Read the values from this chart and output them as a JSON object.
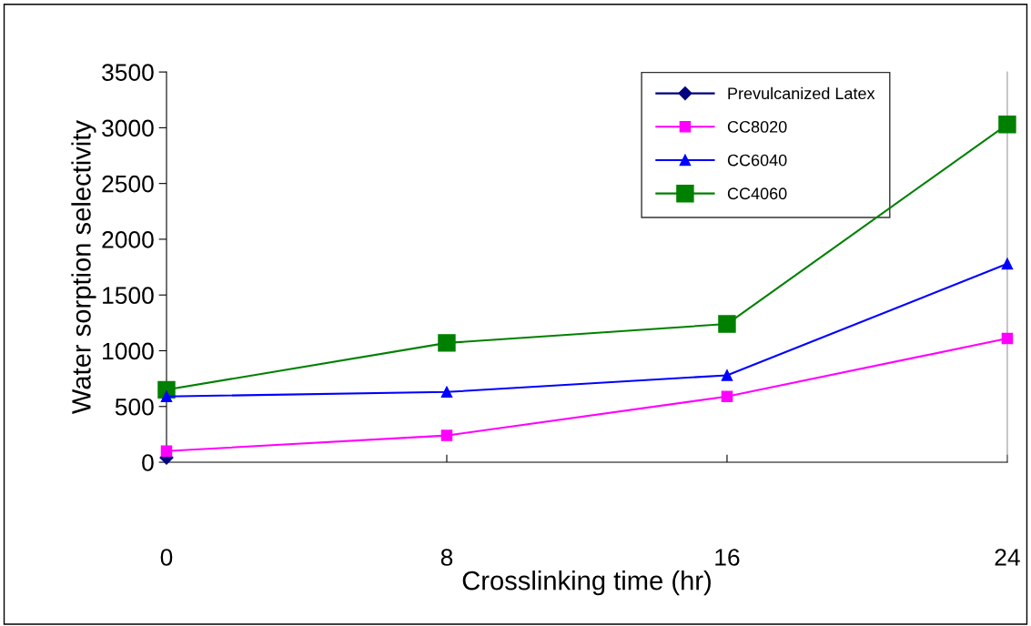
{
  "chart_data": {
    "type": "line",
    "xlabel": "Crosslinking time (hr)",
    "ylabel": "Water sorption selectivity",
    "x": [
      0,
      8,
      16,
      24
    ],
    "xlim": [
      0,
      24
    ],
    "xticks": [
      0,
      8,
      16,
      24
    ],
    "ylim": [
      0,
      3500
    ],
    "yticks": [
      0,
      500,
      1000,
      1500,
      2000,
      2500,
      3000,
      3500
    ],
    "grid": false,
    "legend": "top right",
    "series": [
      {
        "name": "Prevulcanized Latex",
        "color": "#000080",
        "marker": "diamond",
        "values": [
          40,
          null,
          null,
          null
        ]
      },
      {
        "name": "CC8020",
        "color": "#ff00ff",
        "marker": "square",
        "values": [
          100,
          240,
          590,
          1110
        ]
      },
      {
        "name": "CC6040",
        "color": "#0000ff",
        "marker": "triangle",
        "values": [
          590,
          630,
          780,
          1780
        ]
      },
      {
        "name": "CC4060",
        "color": "#008000",
        "marker": "square",
        "values": [
          650,
          1070,
          1240,
          3030
        ]
      }
    ]
  }
}
